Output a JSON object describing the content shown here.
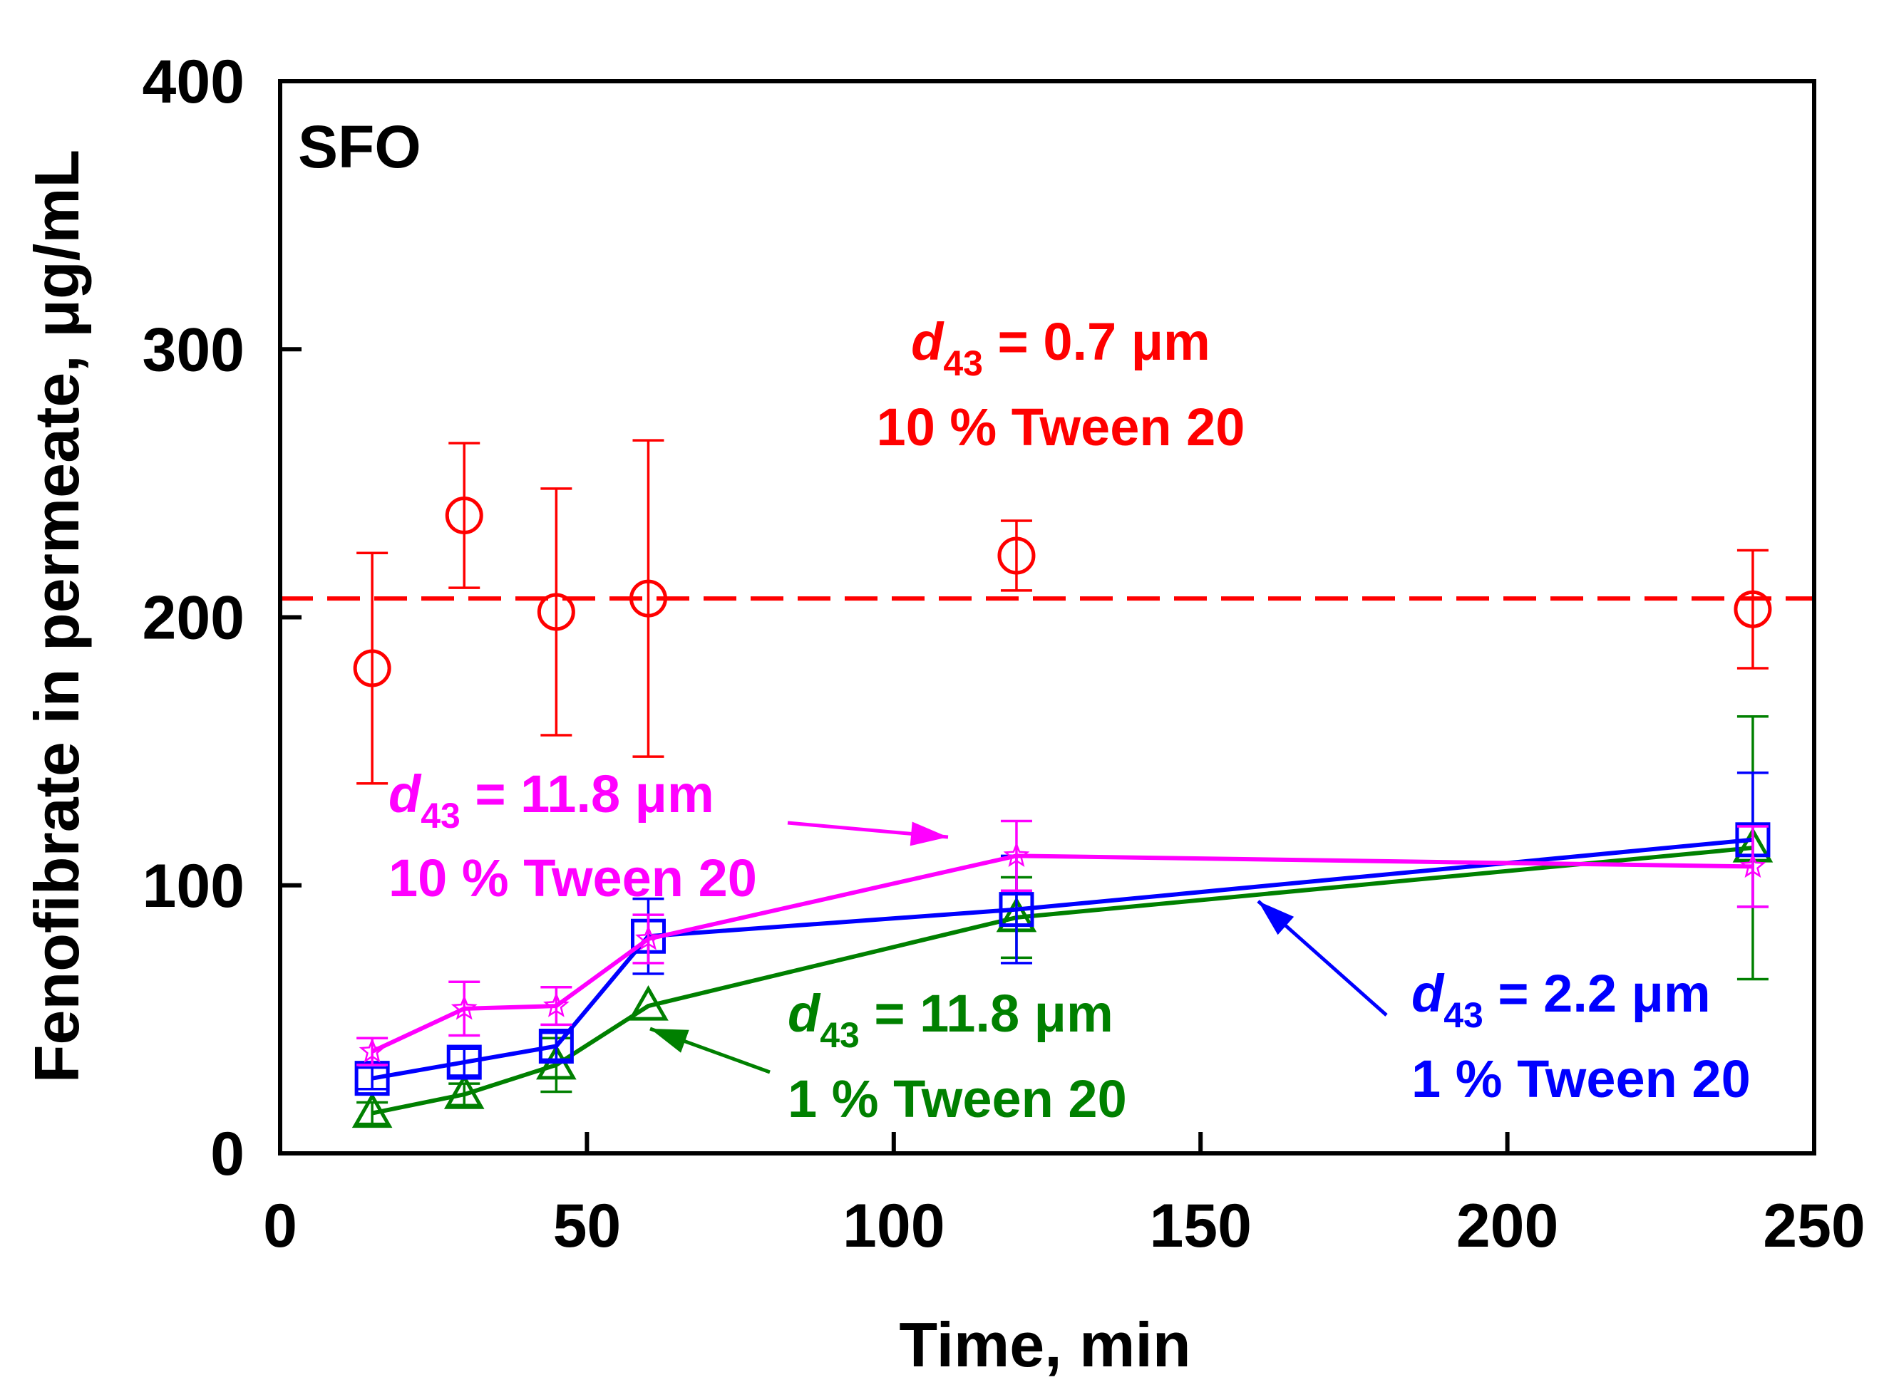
{
  "chart_data": {
    "type": "line",
    "panel_label": "SFO",
    "xlabel": "Time, min",
    "ylabel": "Fenofibrate in permeate, μg/mL",
    "xlim": [
      0,
      250
    ],
    "ylim": [
      0,
      400
    ],
    "xticks": [
      "0",
      "50",
      "100",
      "150",
      "200",
      "250"
    ],
    "yticks": [
      "0",
      "100",
      "200",
      "300",
      "400"
    ],
    "grid": false,
    "series": [
      {
        "name": "d43 = 0.7 μm, 10 % Tween 20",
        "color": "#ff0000",
        "marker": "circle",
        "line": "none",
        "x": [
          15,
          30,
          45,
          60,
          120,
          240
        ],
        "y": [
          181,
          238,
          202,
          207,
          223,
          203
        ],
        "err": [
          43,
          27,
          46,
          59,
          13,
          22
        ]
      },
      {
        "name": "d43 = 11.8 μm, 10 % Tween 20",
        "color": "#ff00ff",
        "marker": "star",
        "line": "solid",
        "x": [
          15,
          30,
          45,
          60,
          120,
          240
        ],
        "y": [
          38,
          54,
          55,
          80,
          111,
          107
        ],
        "err": [
          5,
          10,
          7,
          9,
          13,
          15
        ]
      },
      {
        "name": "d43 = 2.2 μm, 1 % Tween 20",
        "color": "#0000ff",
        "marker": "square",
        "line": "solid",
        "x": [
          15,
          30,
          45,
          60,
          120,
          240
        ],
        "y": [
          28,
          34,
          40,
          81,
          91,
          117
        ],
        "err": [
          4,
          5,
          5,
          14,
          20,
          25
        ]
      },
      {
        "name": "d43 = 11.8 μm, 1 % Tween 20",
        "color": "#008000",
        "marker": "triangle",
        "line": "solid",
        "x": [
          15,
          30,
          45,
          60,
          120,
          240
        ],
        "y": [
          15,
          22,
          33,
          55,
          88,
          114
        ],
        "err": [
          4,
          4,
          10,
          0,
          15,
          49
        ]
      }
    ],
    "reference_line": {
      "y": 207,
      "color": "#ff0000",
      "style": "dashed",
      "series": "d43 = 0.7 μm, 10 % Tween 20"
    },
    "annotations": [
      {
        "d_symbol": "d",
        "subscript": "43",
        "value_text": " = 0.7 μm",
        "line2": "10 % Tween 20",
        "color": "#ff0000"
      },
      {
        "d_symbol": "d",
        "subscript": "43",
        "value_text": " = 11.8 μm",
        "line2": "10 % Tween 20",
        "color": "#ff00ff"
      },
      {
        "d_symbol": "d",
        "subscript": "43",
        "value_text": " = 11.8 μm",
        "line2": "1 % Tween 20",
        "color": "#008000"
      },
      {
        "d_symbol": "d",
        "subscript": "43",
        "value_text": " = 2.2 μm",
        "line2": "1 % Tween 20",
        "color": "#0000ff"
      }
    ]
  }
}
